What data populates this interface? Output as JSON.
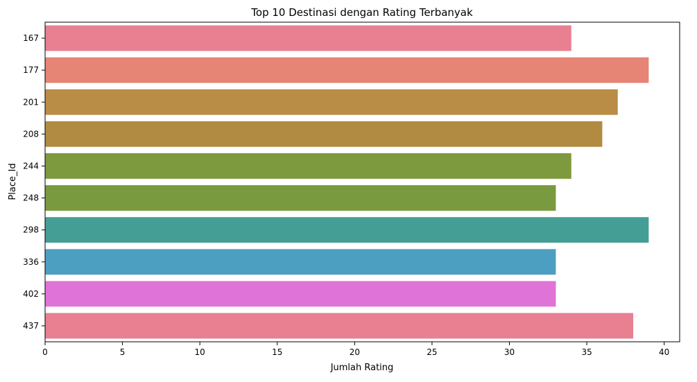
{
  "chart_data": {
    "type": "bar",
    "orientation": "horizontal",
    "title": "Top 10 Destinasi dengan Rating Terbanyak",
    "xlabel": "Jumlah Rating",
    "ylabel": "Place_Id",
    "categories": [
      "167",
      "177",
      "201",
      "208",
      "244",
      "248",
      "298",
      "336",
      "402",
      "437"
    ],
    "values": [
      34,
      39,
      37,
      36,
      34,
      33,
      39,
      33,
      33,
      38
    ],
    "colors": [
      "#e88092",
      "#e68475",
      "#b98d45",
      "#b18b41",
      "#7e9a3f",
      "#7a9a40",
      "#459e95",
      "#4c9fc1",
      "#e073d8",
      "#e88092"
    ],
    "xlim": [
      0,
      41
    ],
    "xticks": [
      0,
      5,
      10,
      15,
      20,
      25,
      30,
      35,
      40
    ],
    "grid": false,
    "legend": "none"
  }
}
